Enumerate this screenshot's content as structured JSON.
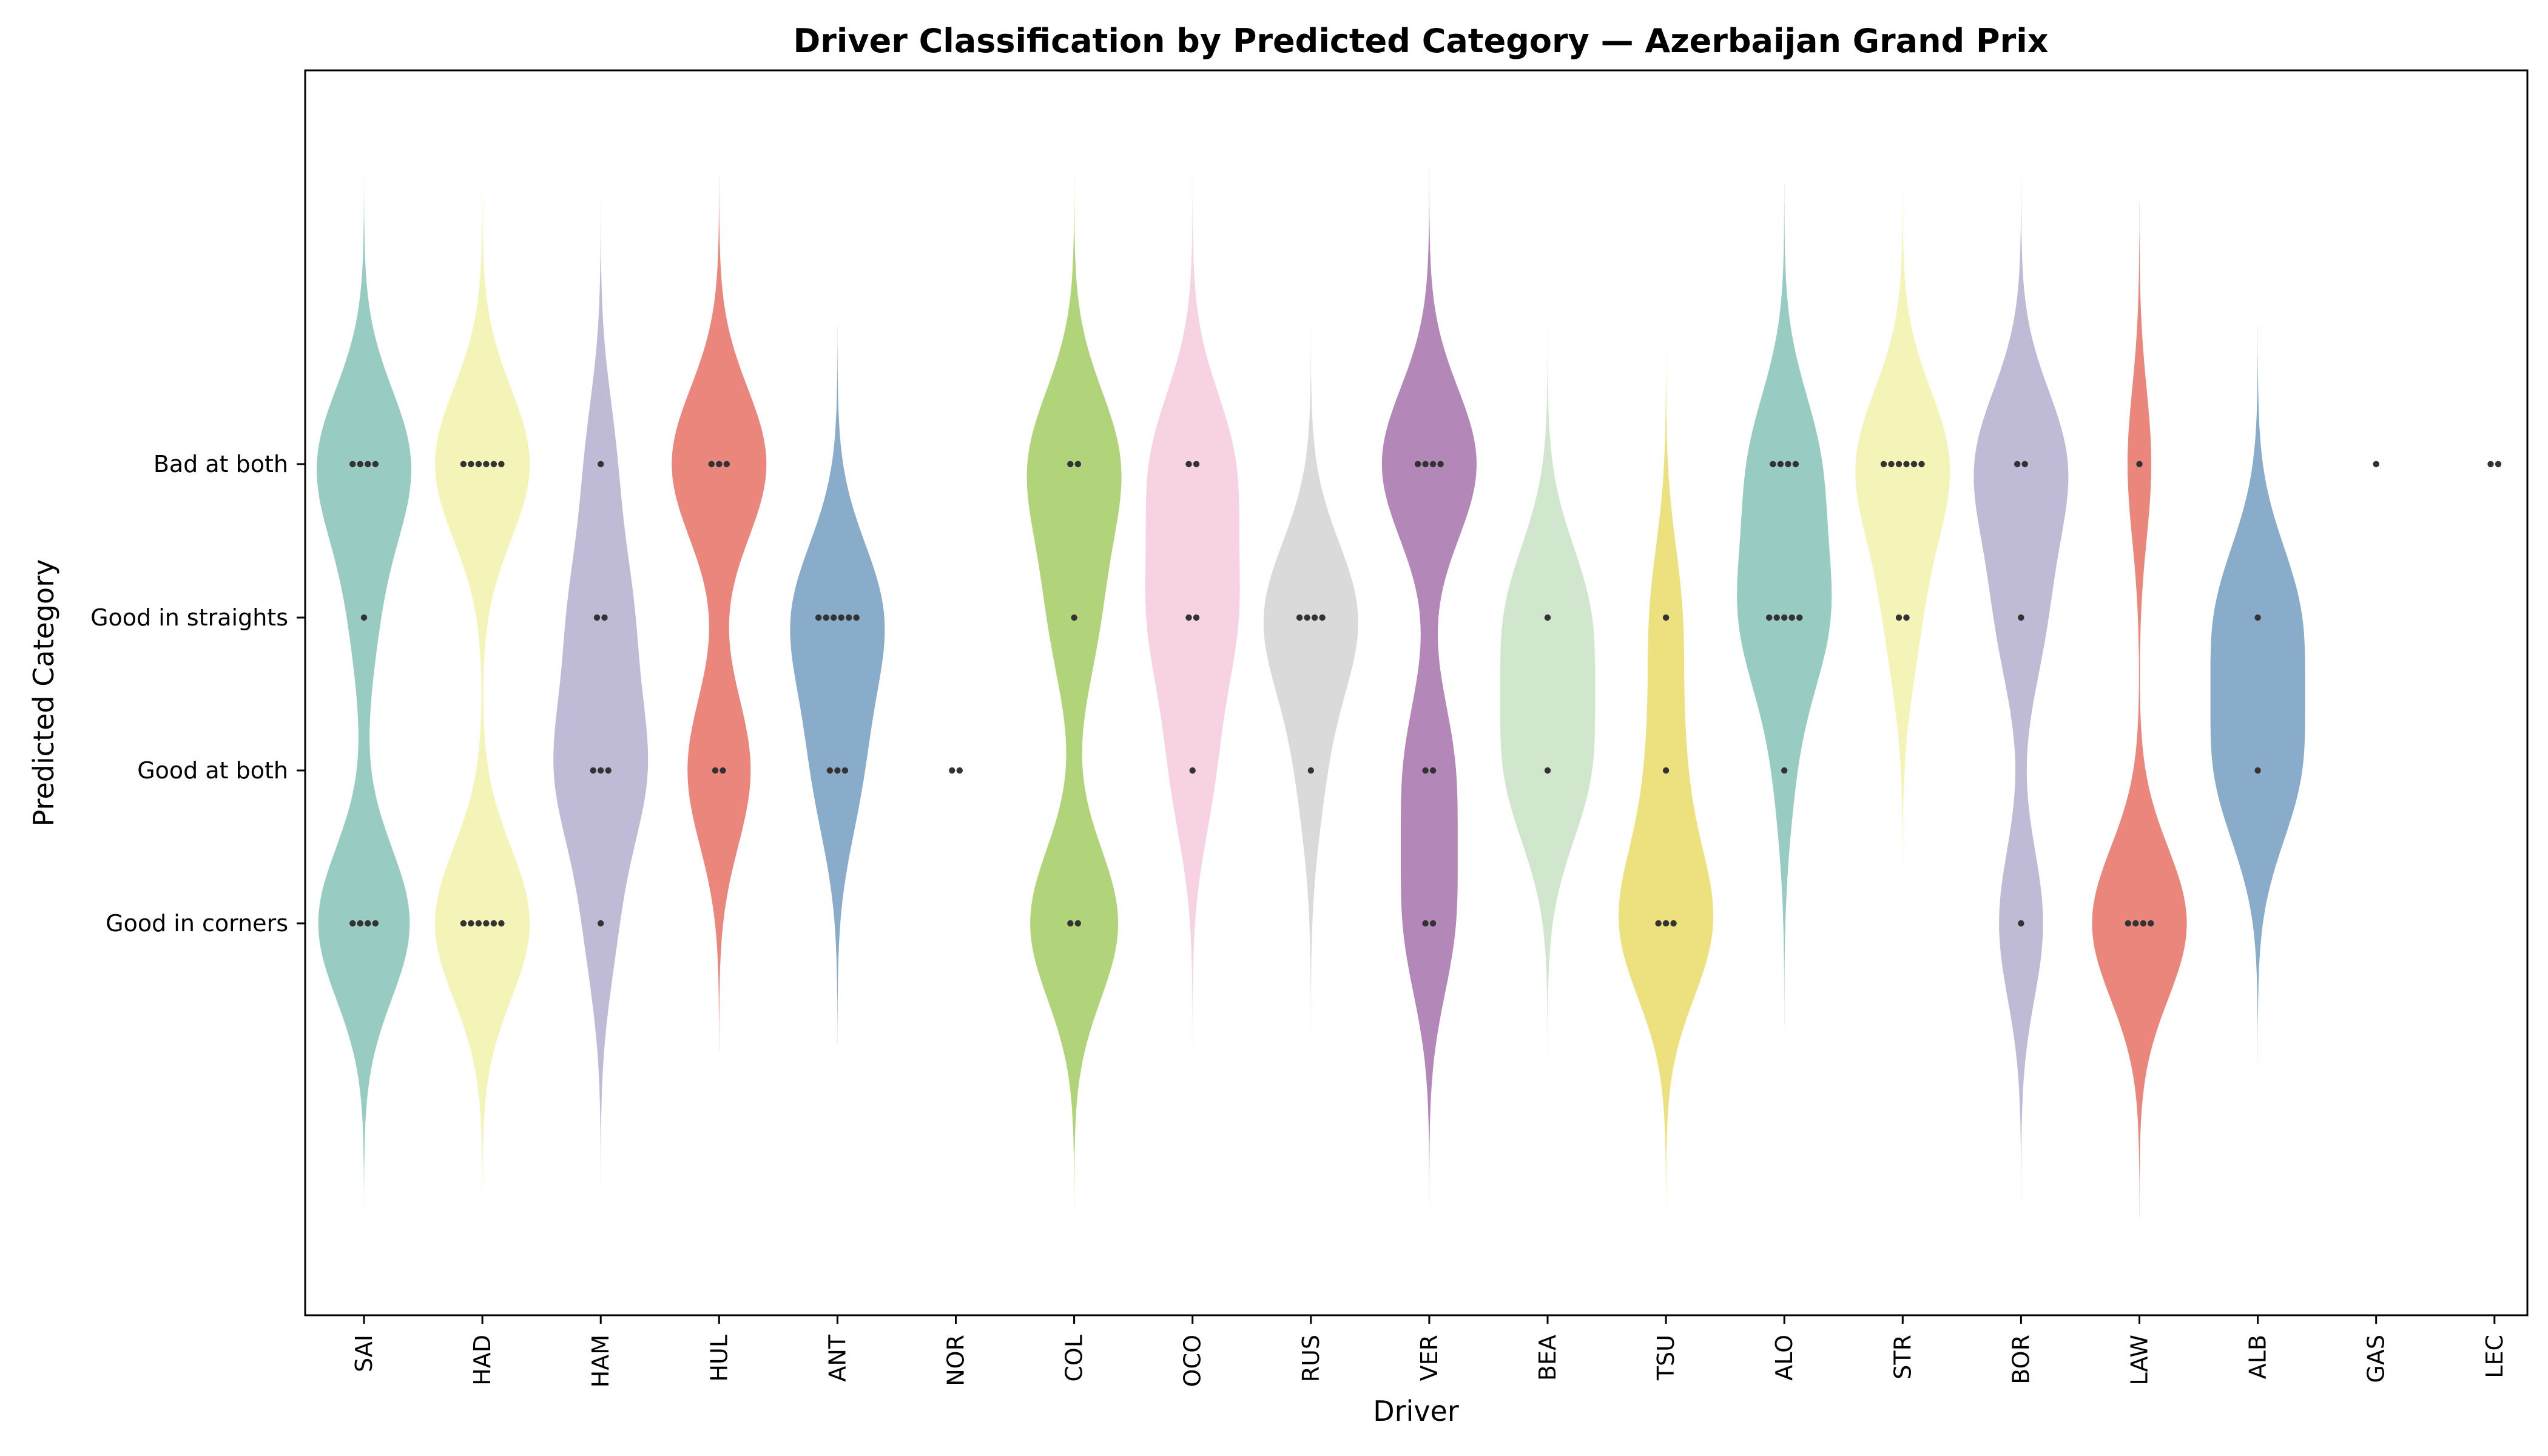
{
  "chart_data": {
    "type": "violin",
    "title": "Driver Classification by Predicted Category — Azerbaijan Grand Prix",
    "xlabel": "Driver",
    "ylabel": "Predicted Category",
    "categories_y": [
      "Bad at both",
      "Good in straights",
      "Good at both",
      "Good in corners"
    ],
    "grid": false,
    "drivers": [
      {
        "name": "SAI",
        "color": "#8dc7bb",
        "counts": {
          "Bad at both": 4,
          "Good in straights": 1,
          "Good at both": 0,
          "Good in corners": 4
        }
      },
      {
        "name": "HAD",
        "color": "#f4f3b0",
        "counts": {
          "Bad at both": 6,
          "Good in straights": 0,
          "Good at both": 0,
          "Good in corners": 6
        }
      },
      {
        "name": "HAM",
        "color": "#b8b4d1",
        "counts": {
          "Bad at both": 1,
          "Good in straights": 2,
          "Good at both": 3,
          "Good in corners": 1
        }
      },
      {
        "name": "HUL",
        "color": "#e8796e",
        "counts": {
          "Bad at both": 3,
          "Good in straights": 0,
          "Good at both": 2,
          "Good in corners": 0
        }
      },
      {
        "name": "ANT",
        "color": "#7ba3c3",
        "counts": {
          "Bad at both": 0,
          "Good in straights": 6,
          "Good at both": 3,
          "Good in corners": 0
        }
      },
      {
        "name": "NOR",
        "color": "#f0a860",
        "counts": {
          "Bad at both": 0,
          "Good in straights": 0,
          "Good at both": 2,
          "Good in corners": 0
        }
      },
      {
        "name": "COL",
        "color": "#a8ce6c",
        "counts": {
          "Bad at both": 2,
          "Good in straights": 1,
          "Good at both": 0,
          "Good in corners": 2
        }
      },
      {
        "name": "OCO",
        "color": "#f5cde0",
        "counts": {
          "Bad at both": 2,
          "Good in straights": 2,
          "Good at both": 1,
          "Good in corners": 0
        }
      },
      {
        "name": "RUS",
        "color": "#d6d6d6",
        "counts": {
          "Bad at both": 0,
          "Good in straights": 4,
          "Good at both": 1,
          "Good in corners": 0
        }
      },
      {
        "name": "VER",
        "color": "#ab7bb0",
        "counts": {
          "Bad at both": 4,
          "Good in straights": 0,
          "Good at both": 2,
          "Good in corners": 2
        }
      },
      {
        "name": "BEA",
        "color": "#cbe4c8",
        "counts": {
          "Bad at both": 0,
          "Good in straights": 1,
          "Good at both": 1,
          "Good in corners": 0
        }
      },
      {
        "name": "TSU",
        "color": "#ebdd70",
        "counts": {
          "Bad at both": 0,
          "Good in straights": 1,
          "Good at both": 1,
          "Good in corners": 3
        }
      },
      {
        "name": "ALO",
        "color": "#8dc7bb",
        "counts": {
          "Bad at both": 4,
          "Good in straights": 5,
          "Good at both": 1,
          "Good in corners": 0
        }
      },
      {
        "name": "STR",
        "color": "#f4f3b0",
        "counts": {
          "Bad at both": 6,
          "Good in straights": 2,
          "Good at both": 0,
          "Good in corners": 0
        }
      },
      {
        "name": "BOR",
        "color": "#b8b4d1",
        "counts": {
          "Bad at both": 2,
          "Good in straights": 1,
          "Good at both": 0,
          "Good in corners": 1
        }
      },
      {
        "name": "LAW",
        "color": "#e8796e",
        "counts": {
          "Bad at both": 1,
          "Good in straights": 0,
          "Good at both": 0,
          "Good in corners": 4
        }
      },
      {
        "name": "ALB",
        "color": "#7ba3c3",
        "counts": {
          "Bad at both": 0,
          "Good in straights": 1,
          "Good at both": 1,
          "Good in corners": 0
        }
      },
      {
        "name": "GAS",
        "color": "#f0a860",
        "counts": {
          "Bad at both": 1,
          "Good in straights": 0,
          "Good at both": 0,
          "Good in corners": 0
        }
      },
      {
        "name": "LEC",
        "color": "#a8ce6c",
        "counts": {
          "Bad at both": 2,
          "Good in straights": 0,
          "Good at both": 0,
          "Good in corners": 0
        }
      }
    ],
    "point_color": "#333333",
    "frame_color": "#000000"
  }
}
